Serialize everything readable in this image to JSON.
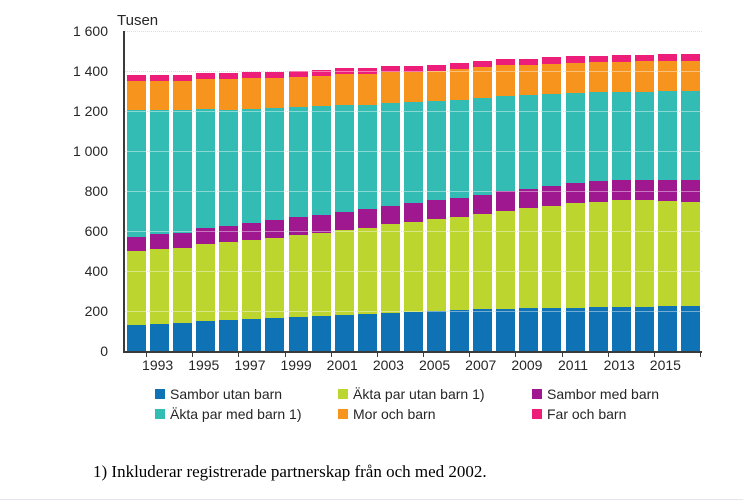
{
  "title": "Tusen",
  "footnote": "1) Inkluderar registrerade partnerskap från och med 2002.",
  "colors": {
    "sambor_utan_barn": "#0e72b5",
    "akta_par_utan_barn": "#bdd52f",
    "sambor_med_barn": "#a01890",
    "akta_par_med_barn": "#33bcb4",
    "mor_och_barn": "#f7941e",
    "far_och_barn": "#ed1e79",
    "axis": "#3a3a3a",
    "grid": "#c4c4c4",
    "text": "#262626"
  },
  "y_axis": {
    "ticks": [
      "0",
      "200",
      "400",
      "600",
      "800",
      "1 000",
      "1 200",
      "1 400",
      "1 600"
    ],
    "min": 0,
    "max": 1600,
    "step": 200
  },
  "x_axis": {
    "labeled_years": [
      "1993",
      "1995",
      "1997",
      "1999",
      "2001",
      "2003",
      "2005",
      "2007",
      "2009",
      "2011",
      "2013",
      "2015"
    ]
  },
  "legend": {
    "rows": [
      [
        "Sambor utan barn",
        "Äkta par utan barn 1)",
        "Sambor med barn"
      ],
      [
        "Äkta par med barn 1)",
        "Mor och barn",
        "Far och barn"
      ]
    ]
  },
  "chart_data": {
    "type": "bar",
    "stacked": true,
    "title": "Tusen",
    "ylabel": "Tusen",
    "xlabel": "",
    "ylim": [
      0,
      1600
    ],
    "grid": true,
    "legend_position": "bottom",
    "categories": [
      1992,
      1993,
      1994,
      1995,
      1996,
      1997,
      1998,
      1999,
      2000,
      2001,
      2002,
      2003,
      2004,
      2005,
      2006,
      2007,
      2008,
      2009,
      2010,
      2011,
      2012,
      2013,
      2014,
      2015,
      2016
    ],
    "series": [
      {
        "name": "Sambor utan barn",
        "color_key": "sambor_utan_barn",
        "values": [
          130,
          135,
          142,
          148,
          154,
          160,
          164,
          169,
          174,
          181,
          186,
          190,
          195,
          199,
          204,
          208,
          211,
          213,
          215,
          217,
          219,
          221,
          222,
          223,
          224
        ]
      },
      {
        "name": "Äkta par utan barn 1)",
        "color_key": "akta_par_utan_barn",
        "values": [
          370,
          375,
          375,
          385,
          390,
          395,
          402,
          411,
          418,
          423,
          430,
          444,
          451,
          460,
          467,
          476,
          489,
          500,
          512,
          523,
          528,
          532,
          531,
          527,
          523
        ]
      },
      {
        "name": "Sambor med barn",
        "color_key": "sambor_med_barn",
        "values": [
          71,
          73,
          75,
          80,
          83,
          85,
          88,
          89,
          89,
          90,
          92,
          93,
          95,
          95,
          96,
          97,
          98,
          99,
          100,
          100,
          101,
          102,
          104,
          106,
          108
        ]
      },
      {
        "name": "Äkta par med barn 1)",
        "color_key": "akta_par_med_barn",
        "values": [
          634,
          622,
          611,
          595,
          580,
          572,
          561,
          551,
          543,
          538,
          524,
          515,
          505,
          494,
          489,
          485,
          478,
          468,
          458,
          450,
          445,
          440,
          440,
          442,
          444
        ]
      },
      {
        "name": "Mor och barn",
        "color_key": "mor_och_barn",
        "values": [
          144,
          146,
          148,
          150,
          151,
          152,
          152,
          152,
          152,
          152,
          152,
          152,
          150,
          151,
          152,
          152,
          152,
          151,
          151,
          151,
          152,
          152,
          153,
          153,
          153
        ]
      },
      {
        "name": "Far och barn",
        "color_key": "far_och_barn",
        "values": [
          30,
          30,
          30,
          30,
          30,
          30,
          30,
          30,
          30,
          30,
          31,
          31,
          31,
          31,
          31,
          31,
          31,
          31,
          32,
          32,
          32,
          32,
          32,
          32,
          32
        ]
      }
    ]
  }
}
